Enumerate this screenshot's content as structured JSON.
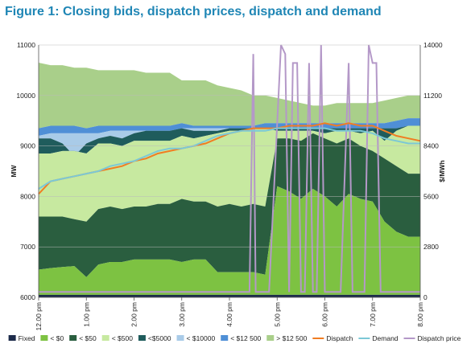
{
  "title": "Figure 1: Closing bids, dispatch prices, dispatch and demand",
  "chart_data": {
    "type": "area",
    "title": "Figure 1: Closing bids, dispatch prices, dispatch and demand",
    "ylabel": "MW",
    "y2label": "$/MWh",
    "ylim": [
      6000,
      11000
    ],
    "y2lim": [
      0,
      14000
    ],
    "yticks": [
      "6000",
      "7000",
      "8000",
      "9000",
      "10000",
      "11000"
    ],
    "y2ticks": [
      "0",
      "2800",
      "5600",
      "8400",
      "11200",
      "14000"
    ],
    "xticks": [
      "12.00 pm",
      "1.00 pm",
      "2.00 pm",
      "3.00 pm",
      "4.00 pm",
      "5.00 pm",
      "6.00 pm",
      "7.00 pm",
      "8.00 pm"
    ],
    "x_hours": [
      0,
      0.25,
      0.5,
      0.75,
      1,
      1.25,
      1.5,
      1.75,
      2,
      2.25,
      2.5,
      2.75,
      3,
      3.25,
      3.5,
      3.75,
      4,
      4.25,
      4.5,
      4.75,
      5,
      5.25,
      5.5,
      5.75,
      6,
      6.25,
      6.5,
      6.75,
      7,
      7.25,
      7.5,
      7.75,
      8
    ],
    "grid": true,
    "legend_position": "bottom",
    "series": [
      {
        "name": "Fixed",
        "color": "#1c2b4a",
        "values": [
          6050,
          6050,
          6050,
          6050,
          6050,
          6050,
          6050,
          6050,
          6050,
          6050,
          6050,
          6050,
          6050,
          6050,
          6050,
          6050,
          6050,
          6050,
          6050,
          6050,
          6050,
          6050,
          6050,
          6050,
          6050,
          6050,
          6050,
          6050,
          6050,
          6050,
          6050,
          6050,
          6050
        ]
      },
      {
        "name": "< $0",
        "color": "#7dc242",
        "values": [
          6550,
          6580,
          6600,
          6620,
          6400,
          6650,
          6700,
          6700,
          6750,
          6750,
          6750,
          6750,
          6700,
          6750,
          6750,
          6500,
          6500,
          6500,
          6500,
          6450,
          8200,
          8100,
          7950,
          8150,
          8000,
          7800,
          8050,
          7950,
          7900,
          7500,
          7300,
          7200,
          7200
        ]
      },
      {
        "name": "< $50",
        "color": "#2a5e3f",
        "values": [
          7600,
          7600,
          7600,
          7550,
          7500,
          7750,
          7800,
          7750,
          7800,
          7800,
          7850,
          7850,
          7950,
          7900,
          7900,
          7800,
          7850,
          7800,
          7850,
          7800,
          9150,
          9150,
          9100,
          9250,
          9150,
          9050,
          9150,
          9000,
          8900,
          8750,
          8600,
          8450,
          8450
        ]
      },
      {
        "name": "< $500",
        "color": "#c7e9a0",
        "values": [
          8850,
          8850,
          8900,
          8900,
          8850,
          9050,
          9050,
          9000,
          9100,
          9100,
          9100,
          9100,
          9200,
          9150,
          9200,
          9250,
          9300,
          9300,
          9350,
          9350,
          9300,
          9300,
          9300,
          9300,
          9250,
          9300,
          9300,
          9250,
          9300,
          9100,
          9300,
          9400,
          9400
        ]
      },
      {
        "name": "<$5000",
        "color": "#1f5c5c",
        "values": [
          9150,
          9150,
          9050,
          8800,
          9050,
          9150,
          9200,
          9150,
          9250,
          9300,
          9300,
          9300,
          9350,
          9300,
          9300,
          9300,
          9350,
          9350,
          9350,
          9350,
          9350,
          9350,
          9350,
          9350,
          9350,
          9350,
          9350,
          9350,
          9350,
          9350,
          9350,
          9400,
          9400
        ]
      },
      {
        "name": "< $10000",
        "color": "#a9cbe8",
        "values": [
          9200,
          9250,
          9250,
          9250,
          9250,
          9250,
          9300,
          9300,
          9300,
          9300,
          9300,
          9300,
          9350,
          9350,
          9350,
          9350,
          9350,
          9350,
          9350,
          9350,
          9350,
          9350,
          9350,
          9350,
          9350,
          9350,
          9350,
          9350,
          9350,
          9350,
          9350,
          9400,
          9400
        ]
      },
      {
        "name": "< $12 500",
        "color": "#4f8fd6",
        "values": [
          9350,
          9400,
          9400,
          9400,
          9350,
          9400,
          9400,
          9400,
          9400,
          9400,
          9400,
          9400,
          9450,
          9400,
          9400,
          9400,
          9400,
          9400,
          9400,
          9450,
          9450,
          9450,
          9450,
          9450,
          9450,
          9450,
          9450,
          9450,
          9450,
          9450,
          9500,
          9550,
          9550
        ]
      },
      {
        "name": "> $12 500",
        "color": "#a9cf8a",
        "values": [
          10650,
          10600,
          10600,
          10550,
          10550,
          10500,
          10500,
          10500,
          10500,
          10450,
          10450,
          10450,
          10300,
          10300,
          10300,
          10200,
          10150,
          10100,
          10000,
          10000,
          9950,
          9900,
          9850,
          9800,
          9800,
          9850,
          9850,
          9850,
          9850,
          9900,
          9950,
          10000,
          10000
        ]
      },
      {
        "name": "Dispatch",
        "color": "#f07d22",
        "values": [
          8050,
          8300,
          8350,
          8400,
          8450,
          8500,
          8550,
          8600,
          8700,
          8750,
          8850,
          8900,
          8950,
          9000,
          9050,
          9150,
          9250,
          9300,
          9350,
          9350,
          9350,
          9400,
          9400,
          9400,
          9450,
          9400,
          9450,
          9400,
          9400,
          9300,
          9200,
          9150,
          9100
        ]
      },
      {
        "name": "Demand",
        "color": "#7cc8d6",
        "values": [
          8150,
          8300,
          8350,
          8400,
          8450,
          8500,
          8600,
          8650,
          8700,
          8800,
          8900,
          8950,
          8950,
          9000,
          9100,
          9200,
          9250,
          9300,
          9300,
          9300,
          9350,
          9350,
          9350,
          9350,
          9350,
          9300,
          9300,
          9300,
          9250,
          9150,
          9100,
          9050,
          9050
        ]
      }
    ],
    "price_series": {
      "name": "Dispatch price",
      "color": "#b498c8",
      "x_hours": [
        0,
        4.42,
        4.5,
        4.55,
        4.63,
        4.75,
        4.83,
        5.08,
        5.17,
        5.25,
        5.33,
        5.42,
        5.5,
        5.58,
        5.67,
        5.75,
        5.83,
        5.92,
        6.0,
        6.17,
        6.33,
        6.5,
        6.58,
        6.67,
        6.75,
        6.83,
        6.92,
        7.0,
        7.08,
        7.17,
        7.25,
        7.33,
        8.0
      ],
      "values": [
        300,
        300,
        13500,
        300,
        300,
        300,
        300,
        14000,
        13500,
        300,
        13000,
        13000,
        300,
        300,
        13000,
        300,
        300,
        14000,
        300,
        300,
        300,
        13000,
        300,
        300,
        300,
        300,
        14000,
        13000,
        13000,
        300,
        300,
        300,
        300
      ]
    }
  }
}
